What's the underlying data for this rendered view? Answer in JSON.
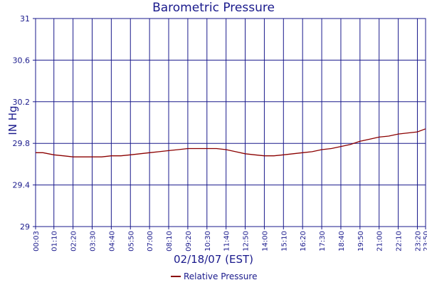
{
  "chart_data": {
    "type": "line",
    "title": "Barometric Pressure",
    "xlabel": "02/18/07 (EST)",
    "ylabel": "IN Hg",
    "ylim": [
      29,
      31
    ],
    "yticks": [
      "29",
      "29.4",
      "29.8",
      "30.2",
      "30.6",
      "31"
    ],
    "xticks": [
      "00:03",
      "01:10",
      "02:20",
      "03:30",
      "04:40",
      "05:50",
      "07:00",
      "08:10",
      "09:20",
      "10:30",
      "11:40",
      "12:50",
      "14:00",
      "15:10",
      "16:20",
      "17:30",
      "18:40",
      "19:50",
      "21:00",
      "22:10",
      "23:20",
      "23:50"
    ],
    "grid": true,
    "legend_position": "bottom",
    "series": [
      {
        "name": "Relative Pressure",
        "color": "#8b0000",
        "points": [
          [
            "00:03",
            29.71
          ],
          [
            "00:30",
            29.71
          ],
          [
            "01:10",
            29.69
          ],
          [
            "01:45",
            29.68
          ],
          [
            "02:20",
            29.67
          ],
          [
            "02:55",
            29.67
          ],
          [
            "03:30",
            29.67
          ],
          [
            "04:05",
            29.67
          ],
          [
            "04:40",
            29.68
          ],
          [
            "05:15",
            29.68
          ],
          [
            "05:50",
            29.69
          ],
          [
            "06:25",
            29.7
          ],
          [
            "07:00",
            29.71
          ],
          [
            "07:35",
            29.72
          ],
          [
            "08:10",
            29.73
          ],
          [
            "08:45",
            29.74
          ],
          [
            "09:20",
            29.75
          ],
          [
            "09:55",
            29.75
          ],
          [
            "10:30",
            29.75
          ],
          [
            "11:05",
            29.75
          ],
          [
            "11:40",
            29.74
          ],
          [
            "12:15",
            29.72
          ],
          [
            "12:50",
            29.7
          ],
          [
            "13:25",
            29.69
          ],
          [
            "14:00",
            29.68
          ],
          [
            "14:35",
            29.68
          ],
          [
            "15:10",
            29.69
          ],
          [
            "15:45",
            29.7
          ],
          [
            "16:20",
            29.71
          ],
          [
            "16:55",
            29.72
          ],
          [
            "17:30",
            29.74
          ],
          [
            "18:05",
            29.75
          ],
          [
            "18:40",
            29.77
          ],
          [
            "19:15",
            29.79
          ],
          [
            "19:50",
            29.82
          ],
          [
            "20:25",
            29.84
          ],
          [
            "21:00",
            29.86
          ],
          [
            "21:35",
            29.87
          ],
          [
            "22:10",
            29.89
          ],
          [
            "22:45",
            29.9
          ],
          [
            "23:20",
            29.91
          ],
          [
            "23:50",
            29.94
          ]
        ]
      }
    ]
  }
}
